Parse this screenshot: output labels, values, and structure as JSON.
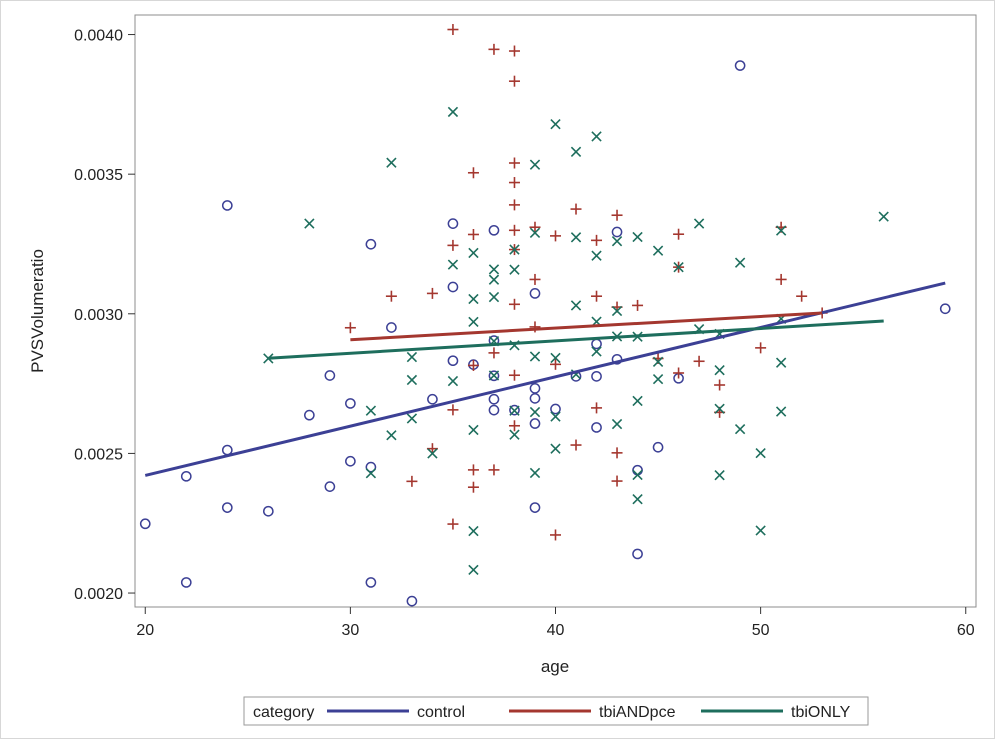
{
  "chart_data": {
    "type": "scatter",
    "title": "",
    "xlabel": "age",
    "ylabel": "PVSVolumeratio",
    "xlim": [
      19.5,
      60.5
    ],
    "ylim": [
      0.00195,
      0.00407
    ],
    "xticks": [
      20,
      30,
      40,
      50,
      60
    ],
    "xtick_labels": [
      "20",
      "30",
      "40",
      "50",
      "60"
    ],
    "yticks": [
      0.002,
      0.0025,
      0.003,
      0.0035,
      0.004
    ],
    "ytick_labels": [
      "0.0020",
      "0.0025",
      "0.0030",
      "0.0035",
      "0.0040"
    ],
    "grid": false,
    "legend": {
      "title": "category",
      "position": "bottom"
    },
    "series": [
      {
        "name": "control",
        "marker": "circle",
        "color": "#3c4095",
        "points": [
          [
            20,
            0.002248
          ],
          [
            22,
            0.002418
          ],
          [
            22,
            0.002038
          ],
          [
            24,
            0.003388
          ],
          [
            24,
            0.002512
          ],
          [
            24,
            0.002306
          ],
          [
            26,
            0.002293
          ],
          [
            28,
            0.002637
          ],
          [
            29,
            0.002779
          ],
          [
            29,
            0.002381
          ],
          [
            30,
            0.002679
          ],
          [
            30,
            0.002472
          ],
          [
            31,
            0.003249
          ],
          [
            31,
            0.002451
          ],
          [
            31,
            0.002038
          ],
          [
            32,
            0.002951
          ],
          [
            33,
            0.001971
          ],
          [
            34,
            0.002694
          ],
          [
            35,
            0.003323
          ],
          [
            35,
            0.003096
          ],
          [
            35,
            0.002832
          ],
          [
            36,
            0.002818
          ],
          [
            37,
            0.003299
          ],
          [
            37,
            0.002904
          ],
          [
            37,
            0.002778
          ],
          [
            37,
            0.002694
          ],
          [
            37,
            0.002655
          ],
          [
            38,
            0.002655
          ],
          [
            39,
            0.003073
          ],
          [
            39,
            0.002733
          ],
          [
            39,
            0.002697
          ],
          [
            39,
            0.002607
          ],
          [
            39,
            0.002306
          ],
          [
            40,
            0.002659
          ],
          [
            41,
            0.002776
          ],
          [
            42,
            0.002892
          ],
          [
            42,
            0.002776
          ],
          [
            42,
            0.002593
          ],
          [
            43,
            0.003293
          ],
          [
            43,
            0.002837
          ],
          [
            44,
            0.00244
          ],
          [
            44,
            0.00214
          ],
          [
            45,
            0.002522
          ],
          [
            46,
            0.002769
          ],
          [
            49,
            0.003889
          ],
          [
            59,
            0.003018
          ]
        ],
        "fit": [
          [
            20,
            0.002421
          ],
          [
            59,
            0.00311
          ]
        ]
      },
      {
        "name": "tbiANDpce",
        "marker": "plus",
        "color": "#a4372f",
        "points": [
          [
            30,
            0.00295
          ],
          [
            32,
            0.003063
          ],
          [
            33,
            0.0024
          ],
          [
            34,
            0.003073
          ],
          [
            34,
            0.002517
          ],
          [
            35,
            0.004018
          ],
          [
            35,
            0.003245
          ],
          [
            35,
            0.002656
          ],
          [
            35,
            0.002247
          ],
          [
            36,
            0.003505
          ],
          [
            36,
            0.003284
          ],
          [
            36,
            0.002815
          ],
          [
            36,
            0.002441
          ],
          [
            36,
            0.002379
          ],
          [
            37,
            0.003947
          ],
          [
            37,
            0.00286
          ],
          [
            37,
            0.002441
          ],
          [
            38,
            0.003941
          ],
          [
            38,
            0.003833
          ],
          [
            38,
            0.00354
          ],
          [
            38,
            0.00347
          ],
          [
            38,
            0.00339
          ],
          [
            38,
            0.003299
          ],
          [
            38,
            0.00323
          ],
          [
            38,
            0.003034
          ],
          [
            38,
            0.00278
          ],
          [
            38,
            0.002599
          ],
          [
            39,
            0.00331
          ],
          [
            39,
            0.003123
          ],
          [
            39,
            0.002953
          ],
          [
            40,
            0.003279
          ],
          [
            40,
            0.002819
          ],
          [
            40,
            0.002208
          ],
          [
            41,
            0.003375
          ],
          [
            41,
            0.00253
          ],
          [
            42,
            0.003263
          ],
          [
            42,
            0.003063
          ],
          [
            42,
            0.002663
          ],
          [
            43,
            0.003353
          ],
          [
            43,
            0.003024
          ],
          [
            43,
            0.002502
          ],
          [
            43,
            0.002401
          ],
          [
            44,
            0.00303
          ],
          [
            45,
            0.00284
          ],
          [
            46,
            0.003285
          ],
          [
            46,
            0.003167
          ],
          [
            46,
            0.002788
          ],
          [
            47,
            0.00283
          ],
          [
            48,
            0.002745
          ],
          [
            48,
            0.002647
          ],
          [
            50,
            0.002878
          ],
          [
            51,
            0.00331
          ],
          [
            51,
            0.003123
          ],
          [
            52,
            0.003063
          ],
          [
            53,
            0.003003
          ]
        ],
        "fit": [
          [
            30,
            0.002907
          ],
          [
            53,
            0.003003
          ]
        ]
      },
      {
        "name": "tbiONLY",
        "marker": "x",
        "color": "#1e6e5d",
        "points": [
          [
            26,
            0.00284
          ],
          [
            28,
            0.003323
          ],
          [
            31,
            0.002653
          ],
          [
            31,
            0.002429
          ],
          [
            32,
            0.003541
          ],
          [
            32,
            0.002565
          ],
          [
            33,
            0.002845
          ],
          [
            33,
            0.002763
          ],
          [
            33,
            0.002625
          ],
          [
            34,
            0.0025
          ],
          [
            35,
            0.003723
          ],
          [
            35,
            0.003176
          ],
          [
            35,
            0.002759
          ],
          [
            36,
            0.003218
          ],
          [
            36,
            0.003053
          ],
          [
            36,
            0.002971
          ],
          [
            36,
            0.002584
          ],
          [
            36,
            0.002222
          ],
          [
            36,
            0.002083
          ],
          [
            37,
            0.003159
          ],
          [
            37,
            0.003122
          ],
          [
            37,
            0.00306
          ],
          [
            37,
            0.002902
          ],
          [
            37,
            0.002779
          ],
          [
            38,
            0.00323
          ],
          [
            38,
            0.003158
          ],
          [
            38,
            0.002887
          ],
          [
            38,
            0.002653
          ],
          [
            38,
            0.002567
          ],
          [
            39,
            0.003534
          ],
          [
            39,
            0.00329
          ],
          [
            39,
            0.002847
          ],
          [
            39,
            0.002648
          ],
          [
            39,
            0.00243
          ],
          [
            40,
            0.003679
          ],
          [
            40,
            0.002842
          ],
          [
            40,
            0.002632
          ],
          [
            40,
            0.002517
          ],
          [
            41,
            0.00358
          ],
          [
            41,
            0.003274
          ],
          [
            41,
            0.00303
          ],
          [
            41,
            0.002783
          ],
          [
            42,
            0.003635
          ],
          [
            42,
            0.003208
          ],
          [
            42,
            0.002972
          ],
          [
            42,
            0.002865
          ],
          [
            43,
            0.00326
          ],
          [
            43,
            0.00301
          ],
          [
            43,
            0.002919
          ],
          [
            43,
            0.002605
          ],
          [
            44,
            0.003275
          ],
          [
            44,
            0.002918
          ],
          [
            44,
            0.002688
          ],
          [
            44,
            0.002423
          ],
          [
            44,
            0.002336
          ],
          [
            45,
            0.003226
          ],
          [
            45,
            0.002828
          ],
          [
            45,
            0.002766
          ],
          [
            46,
            0.003167
          ],
          [
            47,
            0.003323
          ],
          [
            47,
            0.002945
          ],
          [
            48,
            0.002928
          ],
          [
            48,
            0.002798
          ],
          [
            48,
            0.00266
          ],
          [
            48,
            0.002422
          ],
          [
            49,
            0.003183
          ],
          [
            49,
            0.002587
          ],
          [
            50,
            0.002501
          ],
          [
            50,
            0.002224
          ],
          [
            51,
            0.003298
          ],
          [
            51,
            0.002982
          ],
          [
            51,
            0.002825
          ],
          [
            51,
            0.00265
          ],
          [
            56,
            0.003348
          ]
        ],
        "fit": [
          [
            26,
            0.002841
          ],
          [
            56,
            0.002974
          ]
        ]
      }
    ]
  }
}
